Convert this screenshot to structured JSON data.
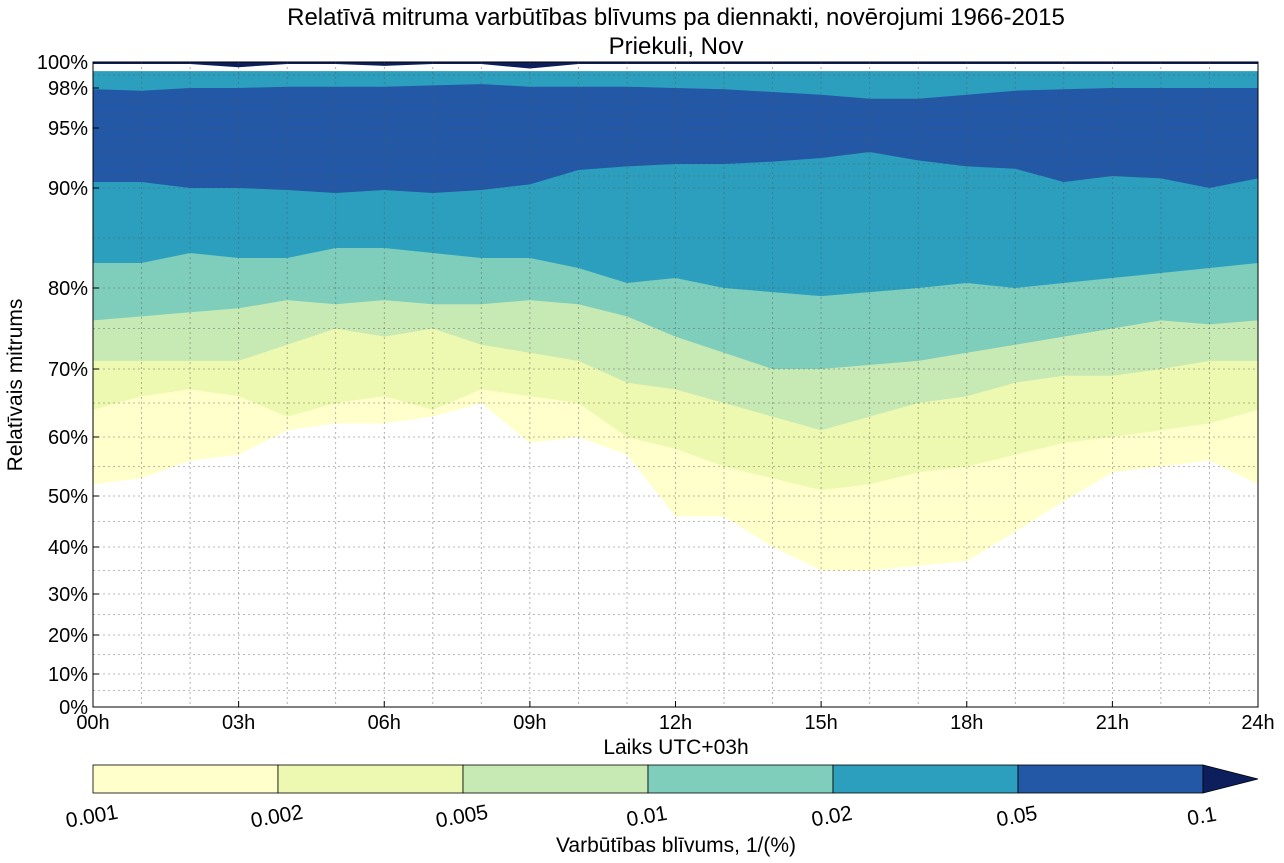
{
  "chart_data": {
    "type": "area",
    "title": "Relatīvā mitruma varbūtības blīvums pa diennakti, novērojumi 1966-2015",
    "subtitle": "Priekuli, Nov",
    "xlabel": "Laiks UTC+03h",
    "ylabel": "Relatīvais mitrums",
    "x_ticks": [
      "00h",
      "03h",
      "06h",
      "09h",
      "12h",
      "15h",
      "18h",
      "21h",
      "24h"
    ],
    "x_tick_hours": [
      0,
      3,
      6,
      9,
      12,
      15,
      18,
      21,
      24
    ],
    "xlim": [
      0,
      24
    ],
    "y_ticks": [
      "0%",
      "10%",
      "20%",
      "30%",
      "40%",
      "50%",
      "60%",
      "70%",
      "80%",
      "90%",
      "95%",
      "98%",
      "100%"
    ],
    "y_tick_values": [
      0,
      10,
      20,
      30,
      40,
      50,
      60,
      70,
      80,
      90,
      95,
      98,
      100
    ],
    "ylim": [
      0,
      100
    ],
    "grid": true,
    "hours": [
      0,
      1,
      2,
      3,
      4,
      5,
      6,
      7,
      8,
      9,
      10,
      11,
      12,
      13,
      14,
      15,
      16,
      17,
      18,
      19,
      20,
      21,
      22,
      23,
      24
    ],
    "series": [
      {
        "color": "#ffffcc",
        "level_range": [
          0.001,
          0.002
        ],
        "lower": [
          52,
          53,
          56,
          57,
          61,
          62,
          62,
          63,
          65,
          59,
          60,
          57,
          46,
          46,
          40,
          35,
          35,
          36,
          37,
          43,
          49,
          54,
          55,
          56,
          52
        ],
        "upper": [
          99,
          99,
          99,
          99,
          99,
          99,
          99,
          99,
          99,
          99,
          99,
          99,
          99,
          99,
          99,
          99,
          99,
          99,
          99,
          99,
          99,
          99,
          99,
          99,
          99
        ]
      },
      {
        "color": "#edf8b1",
        "level_range": [
          0.002,
          0.005
        ],
        "lower": [
          64,
          66,
          67,
          66,
          63,
          65,
          66,
          64,
          67,
          66,
          65,
          60,
          58,
          55,
          53,
          51,
          52,
          54,
          55,
          57,
          59,
          60,
          61,
          62,
          64
        ],
        "upper": [
          99,
          99,
          99,
          99,
          99,
          99,
          99,
          99,
          99,
          99,
          99,
          99,
          99,
          99,
          99,
          99,
          99,
          99,
          99,
          99,
          99,
          99,
          99,
          99,
          99
        ]
      },
      {
        "color": "#c7e9b4",
        "level_range": [
          0.005,
          0.01
        ],
        "lower": [
          71,
          71,
          71,
          71,
          73,
          75,
          74,
          75,
          73,
          72,
          71,
          68,
          67,
          65,
          63,
          61,
          63,
          65,
          66,
          68,
          69,
          69,
          70,
          71,
          71
        ],
        "upper": [
          99,
          99,
          99,
          99,
          99,
          99,
          99,
          99,
          99,
          99,
          99,
          99,
          99,
          99,
          99,
          99,
          99,
          99,
          99,
          99,
          99,
          99,
          99,
          99,
          99
        ]
      },
      {
        "color": "#7fcdbb",
        "level_range": [
          0.01,
          0.02
        ],
        "lower": [
          76,
          76.5,
          77,
          77.5,
          78.5,
          78,
          78.5,
          78,
          78,
          78.5,
          78,
          76.5,
          74,
          72,
          70,
          70,
          70.5,
          71,
          72,
          73,
          74,
          75,
          76,
          75.5,
          76
        ],
        "upper": [
          99,
          99,
          99,
          99,
          99,
          99,
          99,
          99,
          99,
          99,
          99,
          99,
          99,
          99,
          99,
          99,
          99,
          99,
          99,
          99,
          99,
          99,
          99,
          99,
          99
        ]
      },
      {
        "color": "#2c9fbf",
        "level_range": [
          0.02,
          0.05
        ],
        "lower": [
          82.5,
          82.5,
          83.5,
          83,
          83,
          84,
          84,
          83.5,
          83,
          83,
          82,
          80.5,
          81,
          80,
          79.5,
          79,
          79.5,
          80,
          80.5,
          80,
          80.5,
          81,
          81.5,
          82,
          82.5
        ],
        "upper": [
          99.3,
          99.3,
          99.3,
          99.3,
          99.3,
          99.3,
          99.3,
          99.3,
          99.3,
          99.3,
          99.3,
          99.3,
          99.3,
          99.3,
          99.3,
          99.3,
          99.3,
          99.3,
          99.3,
          99.3,
          99.3,
          99.3,
          99.3,
          99.3,
          99.3
        ]
      },
      {
        "color": "#2358a6",
        "level_range": [
          0.05,
          0.1
        ],
        "lower": [
          90.5,
          90.5,
          90,
          90,
          89.8,
          89.5,
          89.8,
          89.5,
          89.8,
          90.3,
          91.5,
          91.8,
          92,
          92,
          92.2,
          92.5,
          93,
          92.3,
          91.8,
          91.6,
          90.5,
          91,
          90.8,
          90,
          90.8
        ],
        "upper": [
          97.9,
          97.8,
          98,
          98,
          98.1,
          98.1,
          98.1,
          98.2,
          98.3,
          98.1,
          98.1,
          98.1,
          98,
          97.9,
          97.7,
          97.5,
          97.2,
          97.2,
          97.5,
          97.8,
          97.9,
          98,
          98,
          98,
          98
        ]
      },
      {
        "color": "#0c1f5c",
        "level_range": [
          0.1,
          null
        ],
        "label": "0.1",
        "lower": [
          99.85,
          99.85,
          99.85,
          99.6,
          99.85,
          99.85,
          99.7,
          99.85,
          99.85,
          99.5,
          99.85,
          99.85,
          99.85,
          99.85,
          99.85,
          99.85,
          99.85,
          99.85,
          99.85,
          99.85,
          99.85,
          99.85,
          99.85,
          99.85,
          99.85
        ],
        "upper": [
          100,
          100,
          100,
          100,
          100,
          100,
          100,
          100,
          100,
          100,
          100,
          100,
          100,
          100,
          100,
          100,
          100,
          100,
          100,
          100,
          100,
          100,
          100,
          100,
          100
        ]
      }
    ],
    "colorbar": {
      "label": "Varbūtības blīvums, 1/(%)",
      "ticks": [
        "0.001",
        "0.002",
        "0.005",
        "0.01",
        "0.02",
        "0.05",
        "0.1"
      ],
      "colors": [
        "#ffffcc",
        "#edf8b1",
        "#c7e9b4",
        "#7fcdbb",
        "#2c9fbf",
        "#2358a6"
      ],
      "extend_color": "#0c1f5c",
      "extend": "max",
      "orientation": "horizontal"
    }
  }
}
